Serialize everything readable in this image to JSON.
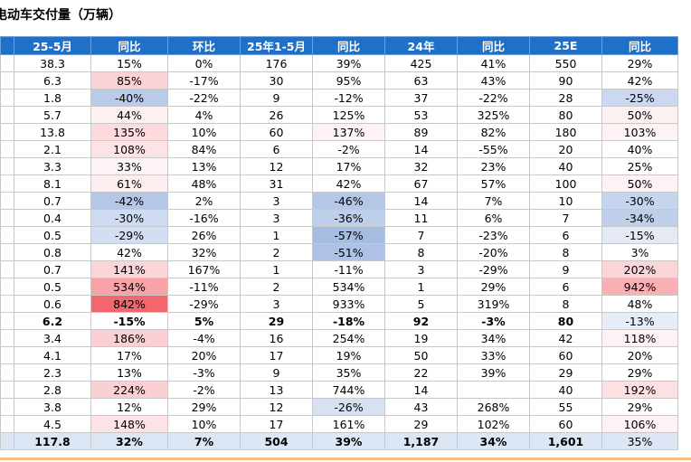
{
  "title": "电动车交付量（万辆）",
  "table": {
    "header": [
      "25-5月",
      "同比",
      "环比",
      "25年1-5月",
      "同比",
      "24年",
      "同比",
      "25E",
      "同比"
    ],
    "rows": [
      {
        "cells": [
          "38.3",
          "15%",
          "0%",
          "176",
          "39%",
          "425",
          "41%",
          "550",
          "29%"
        ]
      },
      {
        "cells": [
          "6.3",
          "85%",
          "-17%",
          "30",
          "95%",
          "63",
          "43%",
          "90",
          "42%"
        ],
        "fills": {
          "1": "#fbd3d7"
        }
      },
      {
        "cells": [
          "1.8",
          "-40%",
          "-22%",
          "9",
          "-12%",
          "37",
          "-22%",
          "28",
          "-25%"
        ],
        "fills": {
          "1": "#b9cbe9",
          "8": "#cbd8ef"
        }
      },
      {
        "cells": [
          "5.7",
          "44%",
          "4%",
          "26",
          "125%",
          "53",
          "325%",
          "80",
          "50%"
        ],
        "fills": {
          "1": "#fdf0f1",
          "8": "#fdf0f1"
        }
      },
      {
        "cells": [
          "13.8",
          "135%",
          "10%",
          "60",
          "137%",
          "89",
          "82%",
          "180",
          "103%"
        ],
        "fills": {
          "1": "#fcdadd",
          "4": "#fdf3f4",
          "8": "#fdf3f4"
        }
      },
      {
        "cells": [
          "2.1",
          "108%",
          "84%",
          "6",
          "-2%",
          "14",
          "-55%",
          "20",
          "40%"
        ],
        "fills": {
          "1": "#fce4e6"
        }
      },
      {
        "cells": [
          "3.3",
          "33%",
          "13%",
          "12",
          "17%",
          "32",
          "23%",
          "40",
          "25%"
        ],
        "fills": {
          "1": "#fdf4f5"
        }
      },
      {
        "cells": [
          "8.1",
          "61%",
          "48%",
          "31",
          "42%",
          "67",
          "57%",
          "100",
          "50%"
        ],
        "fills": {
          "1": "#fdeeef",
          "8": "#fdf3f4"
        }
      },
      {
        "cells": [
          "0.7",
          "-42%",
          "2%",
          "3",
          "-46%",
          "14",
          "7%",
          "10",
          "-30%"
        ],
        "fills": {
          "1": "#b4c7e7",
          "4": "#b4c7e7",
          "8": "#c6d5ee"
        }
      },
      {
        "cells": [
          "0.4",
          "-30%",
          "-16%",
          "3",
          "-36%",
          "11",
          "6%",
          "7",
          "-34%"
        ],
        "fills": {
          "1": "#cfdbf0",
          "4": "#bfcfea",
          "8": "#bfcfea"
        }
      },
      {
        "cells": [
          "0.5",
          "-29%",
          "26%",
          "1",
          "-57%",
          "7",
          "-23%",
          "6",
          "-15%"
        ],
        "fills": {
          "1": "#d3def2",
          "4": "#a6bde2",
          "8": "#e3eaf6"
        }
      },
      {
        "cells": [
          "0.8",
          "42%",
          "32%",
          "2",
          "-51%",
          "8",
          "-20%",
          "8",
          "3%"
        ],
        "fills": {
          "4": "#adc2e5"
        }
      },
      {
        "cells": [
          "0.7",
          "141%",
          "167%",
          "1",
          "-11%",
          "3",
          "-29%",
          "9",
          "202%"
        ],
        "fills": {
          "1": "#fbd5d8",
          "8": "#fbd5d8"
        }
      },
      {
        "cells": [
          "0.5",
          "534%",
          "-11%",
          "2",
          "534%",
          "1",
          "29%",
          "6",
          "942%"
        ],
        "fills": {
          "1": "#f7a3a8",
          "8": "#f8b0b5"
        }
      },
      {
        "cells": [
          "0.6",
          "842%",
          "-29%",
          "3",
          "933%",
          "5",
          "319%",
          "8",
          "48%"
        ],
        "fills": {
          "1": "#f2666c"
        }
      },
      {
        "cells": [
          "6.2",
          "-15%",
          "5%",
          "29",
          "-18%",
          "92",
          "-3%",
          "80",
          "-13%"
        ],
        "bold": true,
        "fills": {
          "8": "#e6edf8"
        }
      },
      {
        "cells": [
          "3.4",
          "186%",
          "-4%",
          "16",
          "254%",
          "19",
          "34%",
          "42",
          "118%"
        ],
        "fills": {
          "1": "#fbd0d4",
          "8": "#fdf3f4"
        }
      },
      {
        "cells": [
          "4.1",
          "17%",
          "20%",
          "17",
          "19%",
          "50",
          "33%",
          "60",
          "20%"
        ]
      },
      {
        "cells": [
          "2.3",
          "13%",
          "-3%",
          "9",
          "35%",
          "22",
          "39%",
          "29",
          "29%"
        ]
      },
      {
        "cells": [
          "2.8",
          "224%",
          "-2%",
          "13",
          "744%",
          "14",
          null,
          "40",
          "192%"
        ],
        "fills": {
          "1": "#fbd0d4",
          "8": "#fce0e3"
        }
      },
      {
        "cells": [
          "3.8",
          "12%",
          "29%",
          "12",
          "-26%",
          "43",
          "268%",
          "55",
          "29%"
        ],
        "fills": {
          "4": "#d6e1f2"
        }
      },
      {
        "cells": [
          "4.5",
          "148%",
          "10%",
          "17",
          "161%",
          "29",
          "102%",
          "60",
          "106%"
        ],
        "fills": {
          "1": "#fce3e5",
          "8": "#fdf3f4"
        }
      },
      {
        "cells": [
          "117.8",
          "32%",
          "7%",
          "504",
          "39%",
          "1,187",
          "34%",
          "1,601",
          "35%"
        ],
        "bold": true,
        "fill": "#dde6f4"
      }
    ]
  }
}
